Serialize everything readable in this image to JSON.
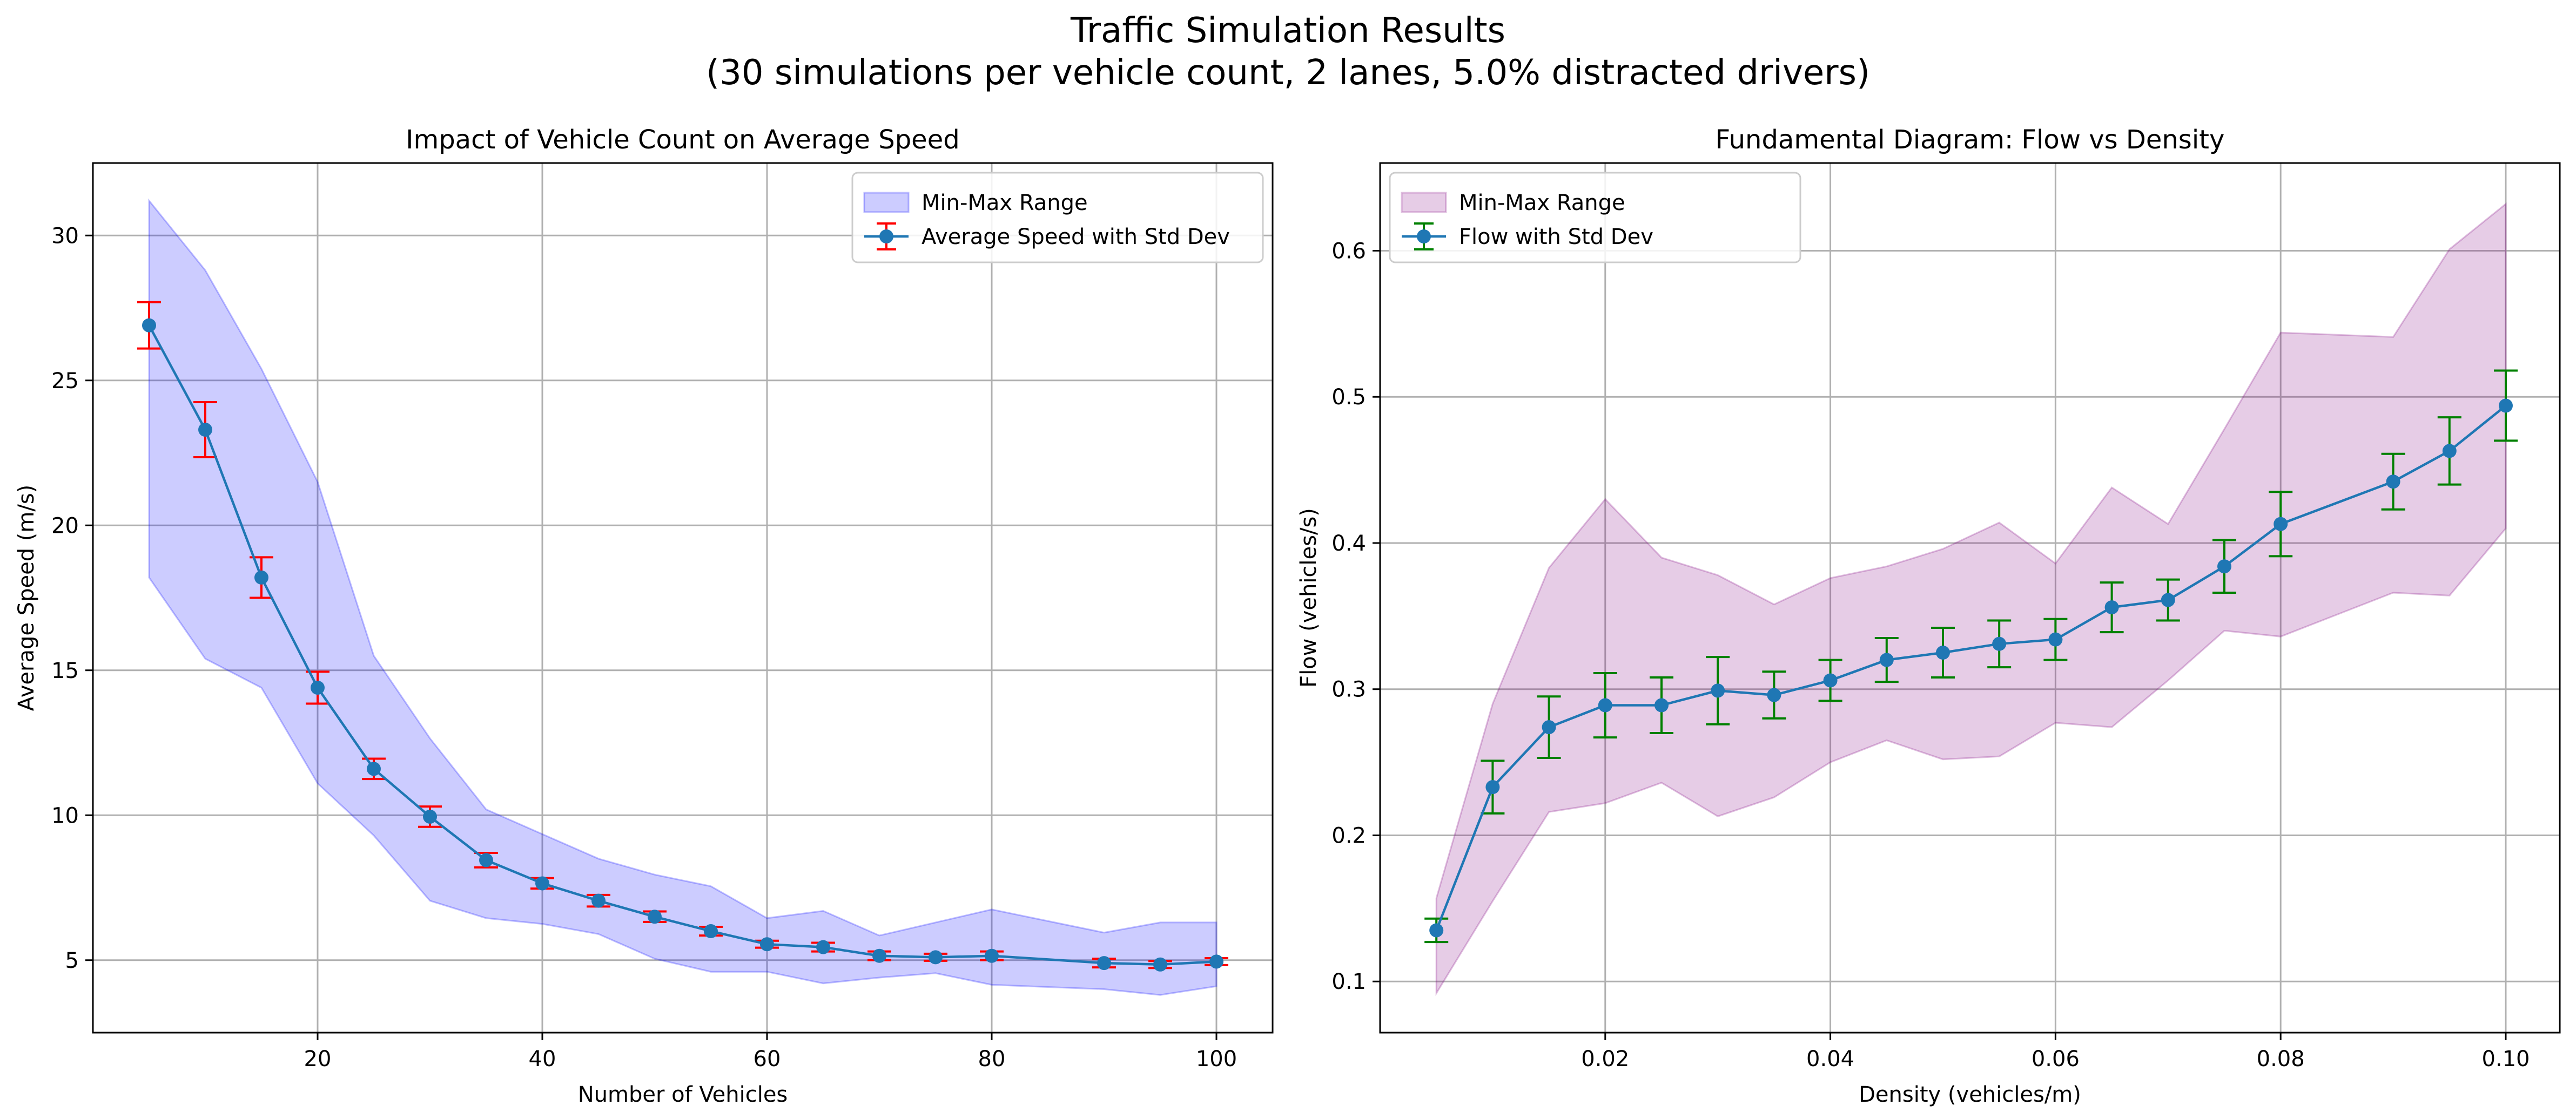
{
  "figure": {
    "title_line1": "Traffic Simulation Results",
    "title_line2": "(30 simulations per vehicle count, 2 lanes, 5.0% distracted drivers)"
  },
  "chart_data": [
    {
      "type": "line",
      "title": "Impact of Vehicle Count on Average Speed",
      "xlabel": "Number of Vehicles",
      "ylabel": "Average Speed (m/s)",
      "xlim": [
        0,
        105
      ],
      "ylim": [
        2.5,
        32.5
      ],
      "xticks": [
        20,
        40,
        60,
        80,
        100
      ],
      "xtick_labels": [
        "20",
        "40",
        "60",
        "80",
        "100"
      ],
      "yticks": [
        5,
        10,
        15,
        20,
        25,
        30
      ],
      "ytick_labels": [
        "5",
        "10",
        "15",
        "20",
        "25",
        "30"
      ],
      "grid": true,
      "legend_position": "top-right",
      "x": [
        5,
        10,
        15,
        20,
        25,
        30,
        35,
        40,
        45,
        50,
        55,
        60,
        65,
        70,
        75,
        80,
        90,
        95,
        100
      ],
      "series": [
        {
          "name": "Average Speed with Std Dev",
          "kind": "errorbar",
          "values": [
            26.9,
            23.3,
            18.2,
            14.4,
            11.6,
            9.95,
            8.45,
            7.65,
            7.05,
            6.5,
            6.0,
            5.55,
            5.45,
            5.15,
            5.1,
            5.15,
            4.9,
            4.85,
            4.95
          ],
          "std": [
            0.8,
            0.95,
            0.7,
            0.55,
            0.35,
            0.35,
            0.25,
            0.18,
            0.2,
            0.18,
            0.15,
            0.12,
            0.15,
            0.15,
            0.12,
            0.15,
            0.15,
            0.12,
            0.12
          ],
          "line_color": "#1f77b4",
          "errorbar_color": "#ff0000"
        },
        {
          "name": "Min-Max Range",
          "kind": "band",
          "min": [
            18.2,
            15.4,
            14.4,
            11.1,
            9.3,
            7.05,
            6.45,
            6.25,
            5.9,
            5.05,
            4.6,
            4.6,
            4.2,
            4.4,
            4.55,
            4.15,
            4.0,
            3.8,
            4.1
          ],
          "max": [
            31.2,
            28.8,
            25.4,
            21.5,
            15.5,
            12.65,
            10.2,
            9.35,
            8.5,
            7.95,
            7.55,
            6.45,
            6.7,
            5.85,
            6.3,
            6.75,
            5.95,
            6.3,
            6.3
          ],
          "fill_color": "#0000ff",
          "fill_opacity": 0.2
        }
      ]
    },
    {
      "type": "line",
      "title": "Fundamental Diagram: Flow vs Density",
      "xlabel": "Density (vehicles/m)",
      "ylabel": "Flow (vehicles/s)",
      "xlim": [
        -0.0,
        0.1048
      ],
      "ylim": [
        0.065,
        0.66
      ],
      "xticks": [
        0.02,
        0.04,
        0.06,
        0.08,
        0.1
      ],
      "xtick_labels": [
        "0.02",
        "0.04",
        "0.06",
        "0.08",
        "0.10"
      ],
      "yticks": [
        0.1,
        0.2,
        0.3,
        0.4,
        0.5,
        0.6
      ],
      "ytick_labels": [
        "0.1",
        "0.2",
        "0.3",
        "0.4",
        "0.5",
        "0.6"
      ],
      "grid": true,
      "legend_position": "top-left",
      "x": [
        0.005,
        0.01,
        0.015,
        0.02,
        0.025,
        0.03,
        0.035,
        0.04,
        0.045,
        0.05,
        0.055,
        0.06,
        0.065,
        0.07,
        0.075,
        0.08,
        0.09,
        0.095,
        0.1
      ],
      "series": [
        {
          "name": "Flow with Std Dev",
          "kind": "errorbar",
          "values": [
            0.135,
            0.233,
            0.274,
            0.289,
            0.289,
            0.299,
            0.296,
            0.306,
            0.32,
            0.325,
            0.331,
            0.334,
            0.356,
            0.361,
            0.384,
            0.413,
            0.442,
            0.463,
            0.494
          ],
          "std": [
            0.008,
            0.018,
            0.021,
            0.022,
            0.019,
            0.023,
            0.016,
            0.014,
            0.015,
            0.017,
            0.016,
            0.014,
            0.017,
            0.014,
            0.018,
            0.022,
            0.019,
            0.023,
            0.024
          ],
          "line_color": "#1f77b4",
          "errorbar_color": "#008000"
        },
        {
          "name": "Min-Max Range",
          "kind": "band",
          "min": [
            0.092,
            0.155,
            0.216,
            0.222,
            0.236,
            0.213,
            0.226,
            0.25,
            0.265,
            0.252,
            0.254,
            0.277,
            0.274,
            0.306,
            0.34,
            0.336,
            0.366,
            0.364,
            0.41
          ],
          "max": [
            0.157,
            0.29,
            0.383,
            0.43,
            0.39,
            0.378,
            0.358,
            0.376,
            0.384,
            0.396,
            0.414,
            0.386,
            0.438,
            0.413,
            0.478,
            0.544,
            0.541,
            0.601,
            0.632
          ],
          "fill_color": "#800080",
          "fill_opacity": 0.2
        }
      ]
    }
  ]
}
